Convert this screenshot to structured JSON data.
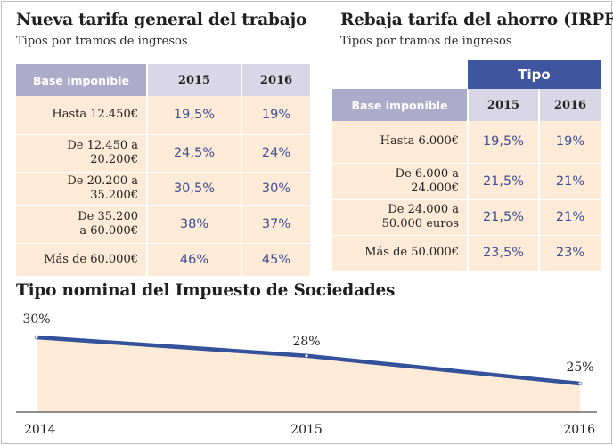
{
  "trabajo": {
    "title": "Nueva tarifa general del trabajo",
    "subtitle": "Tipos por tramos de ingresos",
    "headers": [
      "Base imponible",
      "2015",
      "2016"
    ],
    "rows": [
      {
        "label": [
          "Hasta 12.450€"
        ],
        "v2015": "19,5%",
        "v2016": "19%"
      },
      {
        "label": [
          "De 12.450 a",
          "20.200€"
        ],
        "v2015": "24,5%",
        "v2016": "24%"
      },
      {
        "label": [
          "De 20.200 a",
          "35.200€"
        ],
        "v2015": "30,5%",
        "v2016": "30%"
      },
      {
        "label": [
          "De 35.200",
          "a 60.000€"
        ],
        "v2015": "38%",
        "v2016": "37%"
      },
      {
        "label": [
          "Más de 60.000€"
        ],
        "v2015": "46%",
        "v2016": "45%"
      }
    ]
  },
  "ahorro": {
    "title": "Rebaja tarifa del ahorro (IRPF)",
    "subtitle": "Tipos por tramos de ingresos",
    "group_header": "Tipo",
    "headers": [
      "Base imponible",
      "2015",
      "2016"
    ],
    "rows": [
      {
        "label": [
          "Hasta 6.000€"
        ],
        "v2015": "19,5%",
        "v2016": "19%"
      },
      {
        "label": [
          "De 6.000 a",
          "24.000€"
        ],
        "v2015": "21,5%",
        "v2016": "21%"
      },
      {
        "label": [
          "De 24.000 a",
          "50.000 euros"
        ],
        "v2015": "21,5%",
        "v2016": "21%"
      },
      {
        "label": [
          "Más de 50.000€"
        ],
        "v2015": "23,5%",
        "v2016": "23%"
      }
    ]
  },
  "colors": {
    "series": "#34519b",
    "fill": "#fdebd7",
    "header_dark": "#adabca",
    "header_light": "#d9d7e6",
    "tipo": "#3f55a0",
    "value_text": "#3e4f94"
  },
  "chart_data": {
    "type": "area",
    "title": "Tipo nominal del Impuesto de Sociedades",
    "x": [
      "2014",
      "2015",
      "2016"
    ],
    "values": [
      30,
      28,
      25
    ],
    "labels": [
      "30%",
      "28%",
      "25%"
    ],
    "ylim": [
      0,
      30
    ]
  }
}
